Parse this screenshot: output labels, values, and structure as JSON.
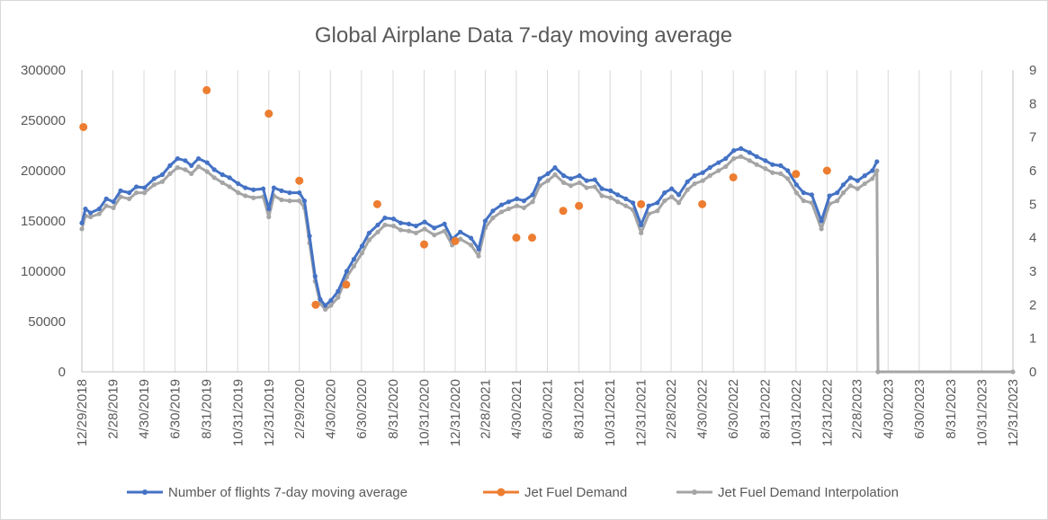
{
  "chart_data": {
    "type": "line",
    "title": "Global Airplane Data 7-day moving average",
    "x_axis": {
      "type": "date",
      "min": "2018-12-29",
      "max": "2023-12-31",
      "tick_labels": [
        "12/29/2018",
        "2/28/2019",
        "4/30/2019",
        "6/30/2019",
        "8/31/2019",
        "10/31/2019",
        "12/31/2019",
        "2/29/2020",
        "4/30/2020",
        "6/30/2020",
        "8/31/2020",
        "10/31/2020",
        "12/31/2020",
        "2/28/2021",
        "4/30/2021",
        "6/30/2021",
        "8/31/2021",
        "10/31/2021",
        "12/31/2021",
        "2/28/2022",
        "4/30/2022",
        "6/30/2022",
        "8/31/2022",
        "10/31/2022",
        "12/31/2022",
        "2/28/2023",
        "4/30/2023",
        "6/30/2023",
        "8/31/2023",
        "10/31/2023",
        "12/31/2023"
      ]
    },
    "y_axis_left": {
      "min": 0,
      "max": 300000,
      "step": 50000,
      "tick_labels": [
        "0",
        "50000",
        "100000",
        "150000",
        "200000",
        "250000",
        "300000"
      ]
    },
    "y_axis_right": {
      "min": 0,
      "max": 9,
      "step": 1,
      "tick_labels": [
        "0",
        "1",
        "2",
        "3",
        "4",
        "5",
        "6",
        "7",
        "8",
        "9"
      ]
    },
    "grid": "vertical",
    "legend_position": "bottom",
    "series": [
      {
        "name": "Number of flights 7-day moving average",
        "axis": "left",
        "color": "#4472c4",
        "marker": "circle",
        "points": [
          [
            "2018-12-29",
            148000
          ],
          [
            "2019-01-05",
            162000
          ],
          [
            "2019-01-15",
            158000
          ],
          [
            "2019-02-01",
            162000
          ],
          [
            "2019-02-15",
            172000
          ],
          [
            "2019-03-01",
            169000
          ],
          [
            "2019-03-15",
            180000
          ],
          [
            "2019-04-01",
            178000
          ],
          [
            "2019-04-15",
            184000
          ],
          [
            "2019-05-01",
            183000
          ],
          [
            "2019-05-20",
            192000
          ],
          [
            "2019-06-05",
            196000
          ],
          [
            "2019-06-20",
            205000
          ],
          [
            "2019-07-05",
            212000
          ],
          [
            "2019-07-20",
            210000
          ],
          [
            "2019-08-01",
            205000
          ],
          [
            "2019-08-15",
            212000
          ],
          [
            "2019-09-01",
            208000
          ],
          [
            "2019-09-15",
            201000
          ],
          [
            "2019-10-01",
            196000
          ],
          [
            "2019-10-15",
            193000
          ],
          [
            "2019-11-01",
            187000
          ],
          [
            "2019-11-15",
            183000
          ],
          [
            "2019-12-01",
            181000
          ],
          [
            "2019-12-20",
            182000
          ],
          [
            "2019-12-31",
            162000
          ],
          [
            "2020-01-10",
            183000
          ],
          [
            "2020-01-25",
            180000
          ],
          [
            "2020-02-10",
            178000
          ],
          [
            "2020-02-29",
            178000
          ],
          [
            "2020-03-10",
            170000
          ],
          [
            "2020-03-20",
            135000
          ],
          [
            "2020-03-31",
            95000
          ],
          [
            "2020-04-10",
            72000
          ],
          [
            "2020-04-20",
            66000
          ],
          [
            "2020-05-01",
            71000
          ],
          [
            "2020-05-15",
            80000
          ],
          [
            "2020-06-01",
            100000
          ],
          [
            "2020-06-15",
            112000
          ],
          [
            "2020-07-01",
            125000
          ],
          [
            "2020-07-15",
            138000
          ],
          [
            "2020-08-01",
            146000
          ],
          [
            "2020-08-15",
            153000
          ],
          [
            "2020-09-01",
            152000
          ],
          [
            "2020-09-15",
            148000
          ],
          [
            "2020-10-01",
            147000
          ],
          [
            "2020-10-15",
            145000
          ],
          [
            "2020-11-01",
            149000
          ],
          [
            "2020-11-20",
            143000
          ],
          [
            "2020-12-10",
            147000
          ],
          [
            "2020-12-25",
            132000
          ],
          [
            "2021-01-10",
            139000
          ],
          [
            "2021-01-31",
            133000
          ],
          [
            "2021-02-15",
            122000
          ],
          [
            "2021-02-28",
            150000
          ],
          [
            "2021-03-15",
            160000
          ],
          [
            "2021-04-01",
            166000
          ],
          [
            "2021-04-15",
            169000
          ],
          [
            "2021-05-01",
            172000
          ],
          [
            "2021-05-15",
            170000
          ],
          [
            "2021-06-01",
            176000
          ],
          [
            "2021-06-15",
            192000
          ],
          [
            "2021-07-01",
            197000
          ],
          [
            "2021-07-15",
            203000
          ],
          [
            "2021-08-01",
            195000
          ],
          [
            "2021-08-15",
            192000
          ],
          [
            "2021-09-01",
            195000
          ],
          [
            "2021-09-15",
            190000
          ],
          [
            "2021-10-01",
            191000
          ],
          [
            "2021-10-15",
            182000
          ],
          [
            "2021-11-01",
            180000
          ],
          [
            "2021-11-15",
            176000
          ],
          [
            "2021-12-01",
            172000
          ],
          [
            "2021-12-15",
            168000
          ],
          [
            "2021-12-31",
            146000
          ],
          [
            "2022-01-15",
            165000
          ],
          [
            "2022-02-01",
            168000
          ],
          [
            "2022-02-15",
            178000
          ],
          [
            "2022-03-01",
            182000
          ],
          [
            "2022-03-15",
            176000
          ],
          [
            "2022-04-01",
            189000
          ],
          [
            "2022-04-15",
            195000
          ],
          [
            "2022-05-01",
            198000
          ],
          [
            "2022-05-15",
            203000
          ],
          [
            "2022-06-01",
            208000
          ],
          [
            "2022-06-15",
            212000
          ],
          [
            "2022-07-01",
            220000
          ],
          [
            "2022-07-15",
            222000
          ],
          [
            "2022-08-01",
            218000
          ],
          [
            "2022-08-15",
            214000
          ],
          [
            "2022-09-01",
            210000
          ],
          [
            "2022-09-15",
            206000
          ],
          [
            "2022-10-01",
            205000
          ],
          [
            "2022-10-15",
            200000
          ],
          [
            "2022-11-01",
            186000
          ],
          [
            "2022-11-15",
            178000
          ],
          [
            "2022-12-01",
            176000
          ],
          [
            "2022-12-20",
            150000
          ],
          [
            "2023-01-05",
            175000
          ],
          [
            "2023-01-20",
            178000
          ],
          [
            "2023-02-01",
            186000
          ],
          [
            "2023-02-15",
            193000
          ],
          [
            "2023-03-01",
            190000
          ],
          [
            "2023-03-15",
            195000
          ],
          [
            "2023-03-30",
            200000
          ],
          [
            "2023-04-08",
            209000
          ]
        ]
      },
      {
        "name": "Jet Fuel Demand",
        "axis": "right",
        "color": "#ed7d31",
        "marker": "circle",
        "points": [
          [
            "2019-01-01",
            7.3
          ],
          [
            "2019-08-31",
            8.4
          ],
          [
            "2019-12-31",
            7.7
          ],
          [
            "2020-02-29",
            5.7
          ],
          [
            "2020-04-01",
            2.0
          ],
          [
            "2020-05-31",
            2.6
          ],
          [
            "2020-07-31",
            5.0
          ],
          [
            "2020-10-31",
            3.8
          ],
          [
            "2020-12-31",
            3.9
          ],
          [
            "2021-04-30",
            4.0
          ],
          [
            "2021-05-31",
            4.0
          ],
          [
            "2021-07-31",
            4.8
          ],
          [
            "2021-08-31",
            4.95
          ],
          [
            "2021-12-31",
            5.0
          ],
          [
            "2022-04-30",
            5.0
          ],
          [
            "2022-06-30",
            5.8
          ],
          [
            "2022-10-31",
            5.9
          ],
          [
            "2022-12-31",
            6.0
          ]
        ]
      },
      {
        "name": "Jet Fuel Demand Interpolation",
        "axis": "left",
        "color": "#a5a5a5",
        "marker": "circle",
        "points": [
          [
            "2018-12-29",
            142000
          ],
          [
            "2019-01-05",
            155000
          ],
          [
            "2019-01-15",
            154000
          ],
          [
            "2019-02-01",
            157000
          ],
          [
            "2019-02-15",
            165000
          ],
          [
            "2019-03-01",
            163000
          ],
          [
            "2019-03-15",
            174000
          ],
          [
            "2019-04-01",
            172000
          ],
          [
            "2019-04-15",
            178000
          ],
          [
            "2019-05-01",
            178000
          ],
          [
            "2019-05-20",
            186000
          ],
          [
            "2019-06-05",
            189000
          ],
          [
            "2019-06-20",
            197000
          ],
          [
            "2019-07-05",
            203000
          ],
          [
            "2019-07-20",
            201000
          ],
          [
            "2019-08-01",
            197000
          ],
          [
            "2019-08-15",
            204000
          ],
          [
            "2019-09-01",
            199000
          ],
          [
            "2019-09-15",
            193000
          ],
          [
            "2019-10-01",
            188000
          ],
          [
            "2019-10-15",
            184000
          ],
          [
            "2019-11-01",
            178000
          ],
          [
            "2019-11-15",
            175000
          ],
          [
            "2019-12-01",
            173000
          ],
          [
            "2019-12-20",
            174000
          ],
          [
            "2019-12-31",
            154000
          ],
          [
            "2020-01-10",
            175000
          ],
          [
            "2020-01-25",
            171000
          ],
          [
            "2020-02-10",
            170000
          ],
          [
            "2020-02-29",
            170000
          ],
          [
            "2020-03-10",
            163000
          ],
          [
            "2020-03-20",
            128000
          ],
          [
            "2020-03-31",
            90000
          ],
          [
            "2020-04-10",
            68000
          ],
          [
            "2020-04-20",
            62000
          ],
          [
            "2020-05-01",
            66000
          ],
          [
            "2020-05-15",
            74000
          ],
          [
            "2020-06-01",
            94000
          ],
          [
            "2020-06-15",
            105000
          ],
          [
            "2020-07-01",
            118000
          ],
          [
            "2020-07-15",
            131000
          ],
          [
            "2020-08-01",
            139000
          ],
          [
            "2020-08-15",
            146000
          ],
          [
            "2020-09-01",
            145000
          ],
          [
            "2020-09-15",
            141000
          ],
          [
            "2020-10-01",
            140000
          ],
          [
            "2020-10-15",
            138000
          ],
          [
            "2020-11-01",
            142000
          ],
          [
            "2020-11-20",
            136000
          ],
          [
            "2020-12-10",
            140000
          ],
          [
            "2020-12-25",
            126000
          ],
          [
            "2021-01-10",
            132000
          ],
          [
            "2021-01-31",
            126000
          ],
          [
            "2021-02-15",
            115000
          ],
          [
            "2021-02-28",
            143000
          ],
          [
            "2021-03-15",
            153000
          ],
          [
            "2021-04-01",
            159000
          ],
          [
            "2021-04-15",
            162000
          ],
          [
            "2021-05-01",
            165000
          ],
          [
            "2021-05-15",
            163000
          ],
          [
            "2021-06-01",
            169000
          ],
          [
            "2021-06-15",
            185000
          ],
          [
            "2021-07-01",
            190000
          ],
          [
            "2021-07-15",
            196000
          ],
          [
            "2021-08-01",
            188000
          ],
          [
            "2021-08-15",
            185000
          ],
          [
            "2021-09-01",
            188000
          ],
          [
            "2021-09-15",
            183000
          ],
          [
            "2021-10-01",
            184000
          ],
          [
            "2021-10-15",
            175000
          ],
          [
            "2021-11-01",
            173000
          ],
          [
            "2021-11-15",
            169000
          ],
          [
            "2021-12-01",
            165000
          ],
          [
            "2021-12-15",
            161000
          ],
          [
            "2021-12-31",
            138000
          ],
          [
            "2022-01-15",
            157000
          ],
          [
            "2022-02-01",
            160000
          ],
          [
            "2022-02-15",
            170000
          ],
          [
            "2022-03-01",
            174000
          ],
          [
            "2022-03-15",
            168000
          ],
          [
            "2022-04-01",
            181000
          ],
          [
            "2022-04-15",
            187000
          ],
          [
            "2022-05-01",
            190000
          ],
          [
            "2022-05-15",
            195000
          ],
          [
            "2022-06-01",
            200000
          ],
          [
            "2022-06-15",
            204000
          ],
          [
            "2022-07-01",
            212000
          ],
          [
            "2022-07-15",
            214000
          ],
          [
            "2022-08-01",
            210000
          ],
          [
            "2022-08-15",
            206000
          ],
          [
            "2022-09-01",
            202000
          ],
          [
            "2022-09-15",
            198000
          ],
          [
            "2022-10-01",
            197000
          ],
          [
            "2022-10-15",
            192000
          ],
          [
            "2022-11-01",
            178000
          ],
          [
            "2022-11-15",
            170000
          ],
          [
            "2022-12-01",
            168000
          ],
          [
            "2022-12-20",
            142000
          ],
          [
            "2023-01-05",
            167000
          ],
          [
            "2023-01-20",
            170000
          ],
          [
            "2023-02-01",
            178000
          ],
          [
            "2023-02-15",
            185000
          ],
          [
            "2023-03-01",
            182000
          ],
          [
            "2023-03-15",
            187000
          ],
          [
            "2023-03-30",
            192000
          ],
          [
            "2023-04-08",
            200000
          ],
          [
            "2023-04-10",
            0
          ],
          [
            "2023-12-31",
            0
          ]
        ]
      }
    ]
  }
}
